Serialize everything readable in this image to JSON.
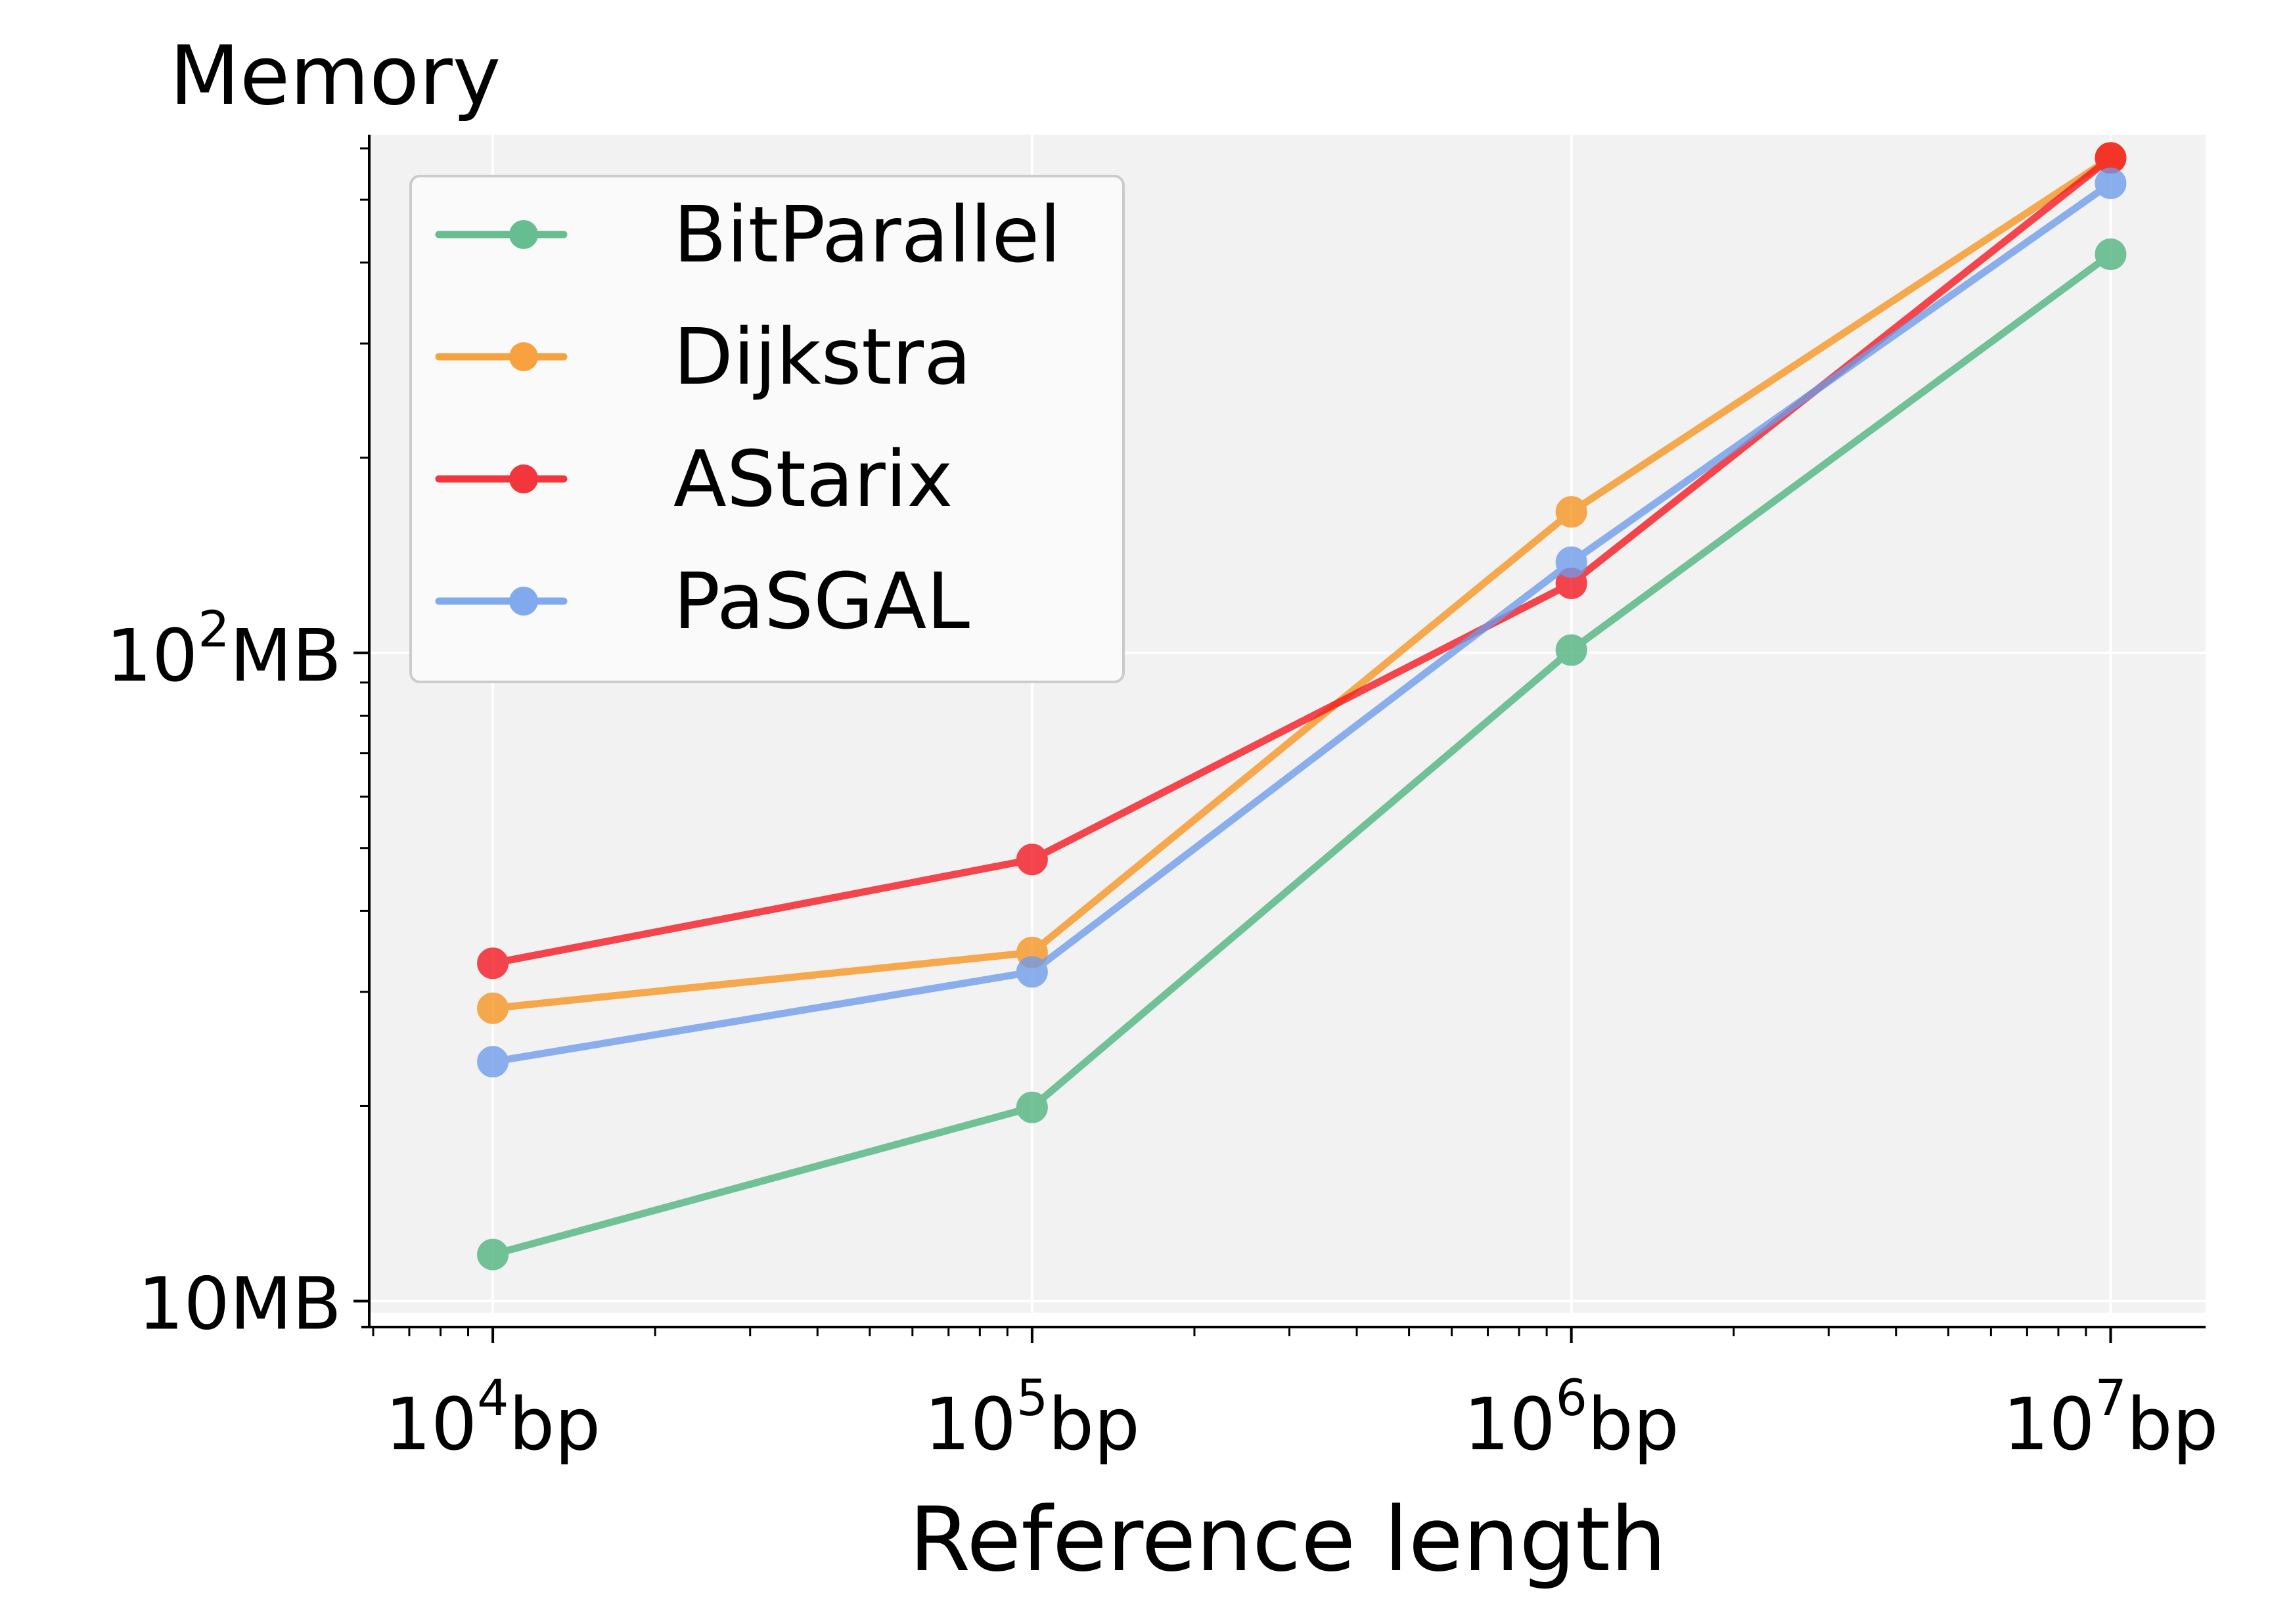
{
  "chart_data": {
    "type": "line",
    "title": "Memory",
    "xlabel": "Reference length",
    "ylabel": "",
    "x_scale": "log",
    "y_scale": "log",
    "x": [
      10000,
      100000,
      1000000,
      10000000
    ],
    "x_tick_labels": [
      {
        "base": "10",
        "exp": "4",
        "unit": "bp"
      },
      {
        "base": "10",
        "exp": "5",
        "unit": "bp"
      },
      {
        "base": "10",
        "exp": "6",
        "unit": "bp"
      },
      {
        "base": "10",
        "exp": "7",
        "unit": "bp"
      }
    ],
    "y_tick_labels": [
      {
        "value": 10,
        "base": "10MB",
        "exp": "",
        "unit": ""
      },
      {
        "value": 100,
        "base": "10",
        "exp": "2",
        "unit": "MB"
      }
    ],
    "xlim": [
      5900,
      15000000
    ],
    "ylim": [
      9.6,
      630
    ],
    "grid": true,
    "legend_position": "top-left",
    "series": [
      {
        "name": "BitParallel",
        "color": "#4DB37D",
        "values": [
          11.8,
          19.9,
          101,
          412
        ]
      },
      {
        "name": "Dijkstra",
        "color": "#F7931E",
        "values": [
          28.3,
          34.5,
          165,
          580
        ]
      },
      {
        "name": "AStarix",
        "color": "#F3141C",
        "values": [
          33.2,
          48.0,
          128,
          580
        ]
      },
      {
        "name": "PaSGAL",
        "color": "#6D9BEB",
        "values": [
          23.4,
          32.2,
          138,
          530
        ]
      }
    ]
  }
}
